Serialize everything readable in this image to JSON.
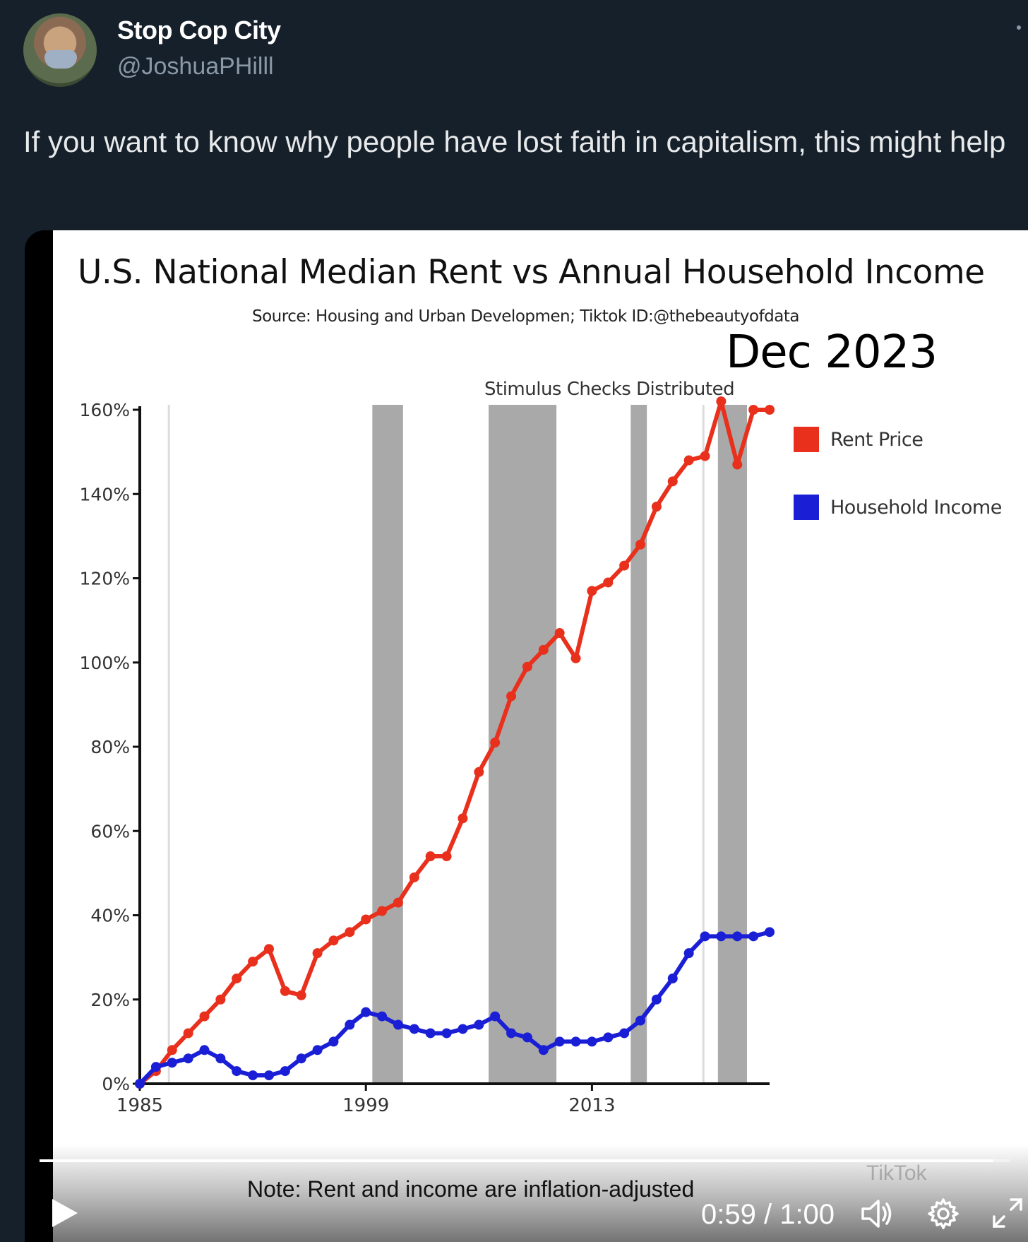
{
  "tweet": {
    "display_name": "Stop Cop City",
    "handle": "@JoshuaPHilll",
    "text": "If you want to know why people have lost faith in capitalism, this might help"
  },
  "video": {
    "title": "U.S. National Median Rent vs Annual Household Income",
    "source": "Source: Housing and Urban Developmen; Tiktok ID:@thebeautyofdata",
    "date_label": "Dec 2023",
    "annotation": "Stimulus Checks Distributed",
    "note": "Note: Rent and income are inflation-adjusted",
    "time_display": "0:59 / 1:00",
    "progress": 0.983,
    "watermark": "TikTok",
    "colors": {
      "rent": "#e8301c",
      "income": "#1a1fd6",
      "bars": "#a9a9a9"
    },
    "icons": [
      "play-icon",
      "volume-icon",
      "settings-gear-icon",
      "fullscreen-icon"
    ]
  },
  "chart_data": {
    "type": "line",
    "title": "U.S. National Median Rent vs Annual Household Income",
    "x_ticks": [
      "1985",
      "1999",
      "2013"
    ],
    "y_ticks": [
      "0%",
      "20%",
      "40%",
      "60%",
      "80%",
      "100%",
      "120%",
      "140%",
      "160%"
    ],
    "ylim": [
      0,
      160
    ],
    "xlim": [
      1985,
      2024
    ],
    "shaded_periods": [
      [
        1999.4,
        2001.3
      ],
      [
        2006.6,
        2010.8
      ],
      [
        2015.4,
        2016.4
      ],
      [
        2020.8,
        2022.6
      ]
    ],
    "reference_lines": [
      1986.8,
      2019.9
    ],
    "legend": "right",
    "series": [
      {
        "name": "Rent Price",
        "x": [
          1985,
          1986,
          1987,
          1988,
          1989,
          1990,
          1991,
          1992,
          1993,
          1994,
          1995,
          1996,
          1997,
          1998,
          1999,
          2000,
          2001,
          2002,
          2003,
          2004,
          2005,
          2006,
          2007,
          2008,
          2009,
          2010,
          2011,
          2012,
          2013,
          2014,
          2015,
          2016,
          2017,
          2018,
          2019,
          2020,
          2021,
          2022,
          2023,
          2024
        ],
        "values": [
          0,
          3,
          8,
          12,
          16,
          20,
          25,
          29,
          32,
          22,
          21,
          31,
          34,
          36,
          39,
          41,
          43,
          49,
          54,
          54,
          63,
          74,
          81,
          92,
          99,
          103,
          107,
          101,
          117,
          119,
          123,
          128,
          137,
          143,
          148,
          149,
          162,
          147,
          160,
          160
        ]
      },
      {
        "name": "Household Income",
        "x": [
          1985,
          1986,
          1987,
          1988,
          1989,
          1990,
          1991,
          1992,
          1993,
          1994,
          1995,
          1996,
          1997,
          1998,
          1999,
          2000,
          2001,
          2002,
          2003,
          2004,
          2005,
          2006,
          2007,
          2008,
          2009,
          2010,
          2011,
          2012,
          2013,
          2014,
          2015,
          2016,
          2017,
          2018,
          2019,
          2020,
          2021,
          2022,
          2023,
          2024
        ],
        "values": [
          0,
          4,
          5,
          6,
          8,
          6,
          3,
          2,
          2,
          3,
          6,
          8,
          10,
          14,
          17,
          16,
          14,
          13,
          12,
          12,
          13,
          14,
          16,
          12,
          11,
          8,
          10,
          10,
          10,
          11,
          12,
          15,
          20,
          25,
          31,
          35,
          35,
          35,
          35,
          36
        ]
      }
    ]
  }
}
